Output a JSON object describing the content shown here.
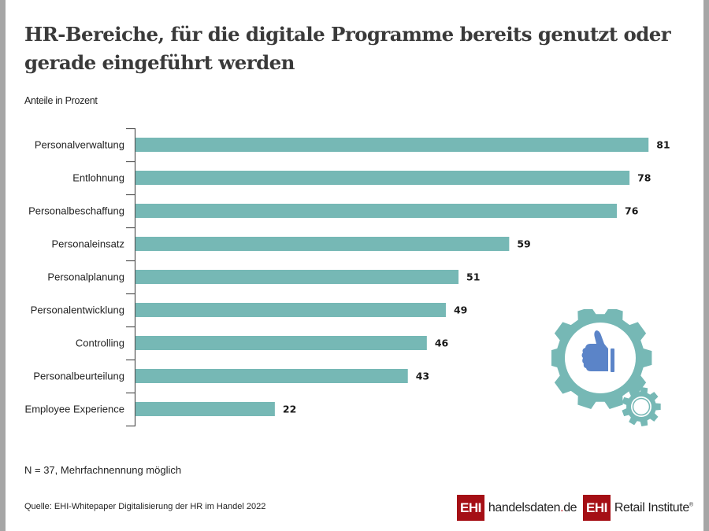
{
  "title": "HR-Bereiche, für die digitale Programme bereits genutzt oder gerade eingeführt werden",
  "subtitle": "Anteile in Prozent",
  "note": "N = 37, Mehrfachnennung möglich",
  "source": "Quelle: EHI-Whitepaper Digitalisierung der HR im Handel 2022",
  "logos": {
    "handelsdaten": {
      "box": "EHI",
      "text_main": "handelsdaten",
      "text_dot": ".",
      "text_tld": "de"
    },
    "retail": {
      "box": "EHI",
      "text": "Retail Institute",
      "reg": "®"
    }
  },
  "colors": {
    "bar": "#76b8b5",
    "gear": "#76b8b5",
    "thumb": "#5b84c8",
    "brand_red": "#a50f15",
    "border": "#a6a6a6"
  },
  "icon": {
    "name": "gear-thumbs-up-icon"
  },
  "chart_data": {
    "type": "bar",
    "orientation": "horizontal",
    "title": "HR-Bereiche, für die digitale Programme bereits genutzt oder gerade eingeführt werden",
    "subtitle": "Anteile in Prozent",
    "xlabel": "",
    "ylabel": "",
    "categories": [
      "Personalverwaltung",
      "Entlohnung",
      "Personalbeschaffung",
      "Personaleinsatz",
      "Personalplanung",
      "Personalentwicklung",
      "Controlling",
      "Personalbeurteilung",
      "Employee Experience"
    ],
    "values": [
      81,
      78,
      76,
      59,
      51,
      49,
      46,
      43,
      22
    ],
    "xlim": [
      0,
      81
    ],
    "grid": false,
    "legend": "none",
    "data_labels": true
  }
}
